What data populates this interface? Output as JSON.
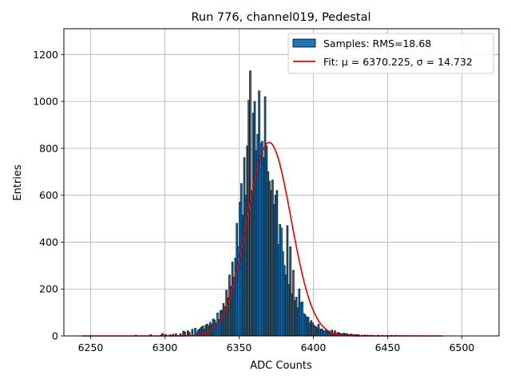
{
  "chart_data": {
    "type": "bar",
    "title": "Run 776, channel019, Pedestal",
    "xlabel": "ADC Counts",
    "ylabel": "Entries",
    "xlim": [
      6232,
      6525
    ],
    "ylim": [
      0,
      1310
    ],
    "x_ticks": [
      6250,
      6300,
      6350,
      6400,
      6450,
      6500
    ],
    "y_ticks": [
      0,
      200,
      400,
      600,
      800,
      1000,
      1200
    ],
    "grid": true,
    "legend_position": "top-right",
    "colors": {
      "bar_fill": "#1f77b4",
      "bar_edge": "#000000",
      "fit_line": "#e00000",
      "grid": "#b0b0b0"
    },
    "series": [
      {
        "name": "Samples: RMS=18.68",
        "type": "histogram",
        "bin_width": 1,
        "x": [
          6280,
          6290,
          6297,
          6298,
          6300,
          6303,
          6305,
          6307,
          6310,
          6312,
          6313,
          6315,
          6316,
          6318,
          6320,
          6321,
          6322,
          6323,
          6324,
          6325,
          6326,
          6327,
          6328,
          6329,
          6330,
          6331,
          6332,
          6333,
          6334,
          6335,
          6336,
          6337,
          6338,
          6339,
          6340,
          6341,
          6342,
          6343,
          6344,
          6345,
          6346,
          6347,
          6348,
          6349,
          6350,
          6351,
          6352,
          6353,
          6354,
          6355,
          6356,
          6357,
          6358,
          6359,
          6360,
          6361,
          6362,
          6363,
          6364,
          6365,
          6366,
          6367,
          6368,
          6369,
          6370,
          6371,
          6372,
          6373,
          6374,
          6375,
          6376,
          6377,
          6378,
          6379,
          6380,
          6381,
          6382,
          6383,
          6384,
          6385,
          6386,
          6387,
          6388,
          6389,
          6390,
          6391,
          6392,
          6393,
          6394,
          6395,
          6396,
          6397,
          6398,
          6399,
          6400,
          6401,
          6402,
          6403,
          6404,
          6405,
          6406,
          6407,
          6408,
          6409,
          6410,
          6411,
          6412,
          6413,
          6414,
          6415,
          6416,
          6417,
          6418,
          6419,
          6420,
          6421,
          6422,
          6423,
          6424,
          6425,
          6426,
          6427,
          6428,
          6429,
          6430,
          6432,
          6434,
          6436,
          6438,
          6440,
          6443,
          6446,
          6449,
          6452,
          6455,
          6458,
          6462,
          6466,
          6470
        ],
        "values": [
          3,
          5,
          4,
          10,
          6,
          5,
          7,
          10,
          9,
          20,
          17,
          22,
          15,
          28,
          33,
          14,
          25,
          30,
          36,
          42,
          28,
          46,
          50,
          42,
          58,
          48,
          72,
          68,
          55,
          98,
          70,
          107,
          110,
          138,
          124,
          195,
          162,
          260,
          212,
          315,
          250,
          332,
          480,
          380,
          570,
          650,
          515,
          760,
          600,
          810,
          1005,
          1130,
          620,
          950,
          1000,
          790,
          860,
          1045,
          820,
          830,
          760,
          1020,
          810,
          700,
          660,
          620,
          665,
          560,
          600,
          620,
          390,
          475,
          460,
          360,
          300,
          260,
          470,
          220,
          380,
          180,
          280,
          150,
          165,
          120,
          200,
          140,
          145,
          95,
          90,
          80,
          80,
          55,
          65,
          55,
          45,
          40,
          35,
          50,
          28,
          30,
          25,
          20,
          25,
          20,
          15,
          18,
          25,
          12,
          22,
          10,
          15,
          12,
          10,
          8,
          12,
          8,
          10,
          5,
          6,
          8,
          5,
          4,
          6,
          4,
          5,
          3,
          4,
          3,
          3,
          2,
          3,
          2,
          2,
          2,
          2,
          1,
          1,
          1,
          1
        ]
      },
      {
        "name": "Fit: μ = 6370.225, σ = 14.732",
        "type": "gaussian_fit",
        "mu": 6370.225,
        "sigma": 14.732,
        "amplitude": 825,
        "x_range": [
          6244,
          6487
        ]
      }
    ]
  }
}
